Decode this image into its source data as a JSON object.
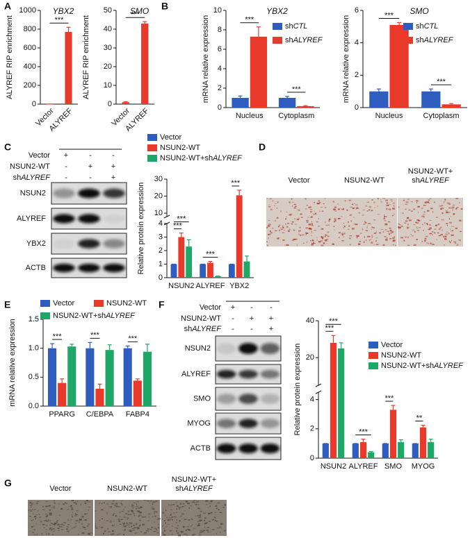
{
  "panel_labels": [
    "A",
    "B",
    "C",
    "D",
    "E",
    "F",
    "G"
  ],
  "chart_data": [
    {
      "type": "bar",
      "title": "YBX2",
      "ylabel": "ALYREF RIP enrichment",
      "categories": [
        "Vector",
        "ALYREF"
      ],
      "values": [
        1,
        770
      ],
      "errors": [
        0.5,
        50
      ],
      "color": "#e8392a",
      "ylim": [
        0,
        1000
      ],
      "yticks": [
        0,
        200,
        400,
        600,
        800,
        1000
      ],
      "annotations": [
        {
          "label": "***",
          "from": 0,
          "to": 1
        }
      ]
    },
    {
      "type": "bar",
      "title": "SMO",
      "ylabel": "ALYREF RIP enrichment",
      "categories": [
        "Vector",
        "ALYREF"
      ],
      "values": [
        1,
        43
      ],
      "errors": [
        0.3,
        1
      ],
      "color": "#e8392a",
      "ylim": [
        0,
        50
      ],
      "yticks": [
        0,
        10,
        20,
        30,
        40,
        50
      ],
      "annotations": [
        {
          "label": "***",
          "from": 0,
          "to": 1
        }
      ]
    },
    {
      "type": "bar",
      "title": "YBX2",
      "ylabel": "mRNA relative expression",
      "categories": [
        "Nucleus",
        "Cytoplasm"
      ],
      "series": [
        {
          "name": "shCTL",
          "color": "#2f5cbf",
          "values": [
            1,
            1
          ],
          "errors": [
            0.2,
            0.15
          ]
        },
        {
          "name": "shALYREF",
          "color": "#e8392a",
          "values": [
            7.3,
            0.15
          ],
          "errors": [
            1,
            0.05
          ]
        }
      ],
      "ylim": [
        0,
        10
      ],
      "yticks": [
        0,
        2,
        4,
        6,
        8,
        10
      ],
      "annotations": [
        {
          "label": "***",
          "category": 0,
          "from": 0,
          "to": 1
        },
        {
          "label": "***",
          "category": 1,
          "from": 0,
          "to": 1
        }
      ]
    },
    {
      "type": "bar",
      "title": "SMO",
      "ylabel": "mRNA relative expression",
      "categories": [
        "Nucleus",
        "Cytoplasm"
      ],
      "series": [
        {
          "name": "shCTL",
          "color": "#2f5cbf",
          "values": [
            1,
            1
          ],
          "errors": [
            0.15,
            0.15
          ]
        },
        {
          "name": "shALYREF",
          "color": "#e8392a",
          "values": [
            5.1,
            0.2
          ],
          "errors": [
            0.15,
            0.05
          ]
        }
      ],
      "ylim": [
        0,
        6
      ],
      "yticks": [
        0,
        2,
        4,
        6
      ],
      "annotations": [
        {
          "label": "***",
          "category": 0,
          "from": 0,
          "to": 1
        },
        {
          "label": "***",
          "category": 1,
          "from": 0,
          "to": 1
        }
      ]
    },
    {
      "type": "bar",
      "ylabel": "Relative protein expression",
      "categories": [
        "NSUN2",
        "ALYREF",
        "YBX2"
      ],
      "series": [
        {
          "name": "Vector",
          "color": "#2f5cbf",
          "values": [
            1,
            1,
            1
          ],
          "errors": [
            0,
            0,
            0
          ]
        },
        {
          "name": "NSUN2-WT",
          "color": "#e8392a",
          "values": [
            3,
            1.1,
            20.5
          ],
          "errors": [
            0.3,
            0.1,
            3
          ]
        },
        {
          "name": "NSUN2-WT+shALYREF",
          "color": "#1fa767",
          "values": [
            2.3,
            0.1,
            1.2
          ],
          "errors": [
            0.5,
            0.02,
            0.4
          ]
        }
      ],
      "ylim": [
        0,
        30
      ],
      "ybreak": [
        4,
        8
      ],
      "yticks": [
        0,
        1,
        2,
        3,
        4,
        10,
        20,
        30
      ],
      "annotations": [
        {
          "label": "***",
          "category": 0,
          "from": 0,
          "to": 1
        },
        {
          "label": "***",
          "category": 0,
          "from": 0,
          "to": 2
        },
        {
          "label": "***",
          "category": 1,
          "from": 0,
          "to": 2
        },
        {
          "label": "***",
          "category": 2,
          "from": 0,
          "to": 1
        }
      ]
    },
    {
      "type": "bar",
      "ylabel": "mRNA relative expression",
      "categories": [
        "PPARG",
        "C/EBPA",
        "FABP4"
      ],
      "series": [
        {
          "name": "Vector",
          "color": "#2f5cbf",
          "values": [
            1,
            1,
            1
          ],
          "errors": [
            0.08,
            0.1,
            0.04
          ]
        },
        {
          "name": "NSUN2-WT",
          "color": "#e8392a",
          "values": [
            0.4,
            0.3,
            0.44
          ],
          "errors": [
            0.07,
            0.08,
            0.03
          ]
        },
        {
          "name": "NSUN2-WT+shALYREF",
          "color": "#1fa767",
          "values": [
            1.03,
            0.97,
            0.94
          ],
          "errors": [
            0.04,
            0.09,
            0.13
          ]
        }
      ],
      "ylim": [
        0,
        1.5
      ],
      "yticks": [
        {
          "value": 0,
          "label": "0.0"
        },
        {
          "value": 0.5,
          "label": "0.5"
        },
        {
          "value": 1,
          "label": "1.0"
        },
        {
          "value": 1.5,
          "label": "1.5"
        }
      ],
      "annotations": [
        {
          "label": "***",
          "category": 0,
          "from": 0,
          "to": 1
        },
        {
          "label": "***",
          "category": 1,
          "from": 0,
          "to": 1
        },
        {
          "label": "***",
          "category": 2,
          "from": 0,
          "to": 1
        }
      ]
    },
    {
      "type": "bar",
      "ylabel": "Relative protein expression",
      "categories": [
        "NSUN2",
        "ALYREF",
        "SMO",
        "MYOG"
      ],
      "series": [
        {
          "name": "Vector",
          "color": "#2f5cbf",
          "values": [
            1,
            1,
            1,
            1
          ],
          "errors": [
            0,
            0,
            0,
            0
          ]
        },
        {
          "name": "NSUN2-WT",
          "color": "#e8392a",
          "values": [
            28,
            1.1,
            3.3,
            2.1
          ],
          "errors": [
            4,
            0.2,
            0.3,
            0.15
          ]
        },
        {
          "name": "NSUN2-WT+shALYREF",
          "color": "#1fa767",
          "values": [
            25,
            0.4,
            1.1,
            1.1
          ],
          "errors": [
            3,
            0.05,
            0.15,
            0.2
          ]
        }
      ],
      "ylim": [
        0,
        40
      ],
      "ybreak": [
        4.5,
        5
      ],
      "yticks": [
        0,
        2,
        4,
        20,
        40
      ],
      "annotations": [
        {
          "label": "***",
          "category": 0,
          "from": 0,
          "to": 1
        },
        {
          "label": "***",
          "category": 0,
          "from": 0,
          "to": 2
        },
        {
          "label": "***",
          "category": 1,
          "from": 0,
          "to": 2
        },
        {
          "label": "***",
          "category": 2,
          "from": 0,
          "to": 1
        },
        {
          "label": "**",
          "category": 3,
          "from": 0,
          "to": 1
        }
      ]
    }
  ],
  "blots": [
    {
      "conditions": [
        {
          "label": "Vector",
          "signs": [
            "+",
            "-",
            "-"
          ]
        },
        {
          "label": "NSUN2-WT",
          "signs": [
            "-",
            "+",
            "+"
          ]
        },
        {
          "label": "shALYREF",
          "signs": [
            "-",
            "-",
            "+"
          ]
        }
      ],
      "proteins": [
        "NSUN2",
        "ALYREF",
        "YBX2",
        "ACTB"
      ]
    },
    {
      "conditions": [
        {
          "label": "Vector",
          "signs": [
            "+",
            "-",
            "-"
          ]
        },
        {
          "label": "NSUN2-WT",
          "signs": [
            "-",
            "+",
            "+"
          ]
        },
        {
          "label": "shALYREF",
          "signs": [
            "-",
            "-",
            "+"
          ]
        }
      ],
      "proteins": [
        "NSUN2",
        "ALYREF",
        "SMO",
        "MYOG",
        "ACTB"
      ]
    }
  ],
  "images": [
    {
      "labels": [
        [
          "Vector"
        ],
        [
          "NSUN2-WT"
        ],
        [
          "NSUN2-WT+",
          "shALYREF"
        ]
      ]
    },
    {
      "labels": [
        [
          "Vector"
        ],
        [
          "NSUN2-WT"
        ],
        [
          "NSUN2-WT+",
          "shALYREF"
        ]
      ]
    }
  ]
}
